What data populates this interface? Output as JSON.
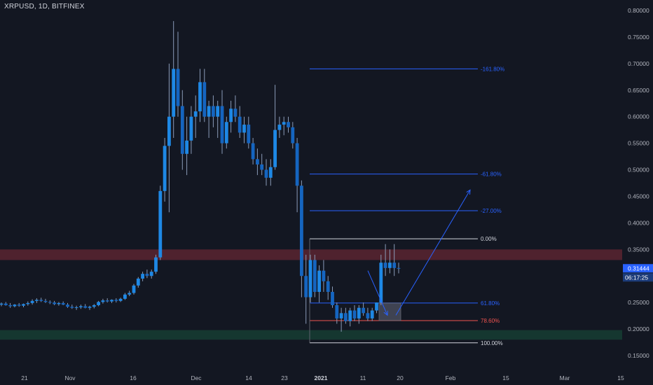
{
  "symbol": {
    "title": "XRPUSD, 1D, BITFINEX"
  },
  "colors": {
    "background": "#131722",
    "candle_up": "#1e88e5",
    "candle_down": "#1565c0",
    "wick": "#8a9bb8",
    "fib_line": "#2962ff",
    "fib_zero": "#d1d4dc",
    "fib_786": "#ef5350",
    "resistance_zone": "#5a2430",
    "support_zone": "#163d33",
    "price_label_bg": "#2962ff",
    "axis_text": "#b2b5be",
    "arrow": "#2962ff"
  },
  "price_axis": {
    "ticks": [
      "0.80000",
      "0.75000",
      "0.70000",
      "0.65000",
      "0.60000",
      "0.55000",
      "0.50000",
      "0.45000",
      "0.40000",
      "0.35000",
      "0.30000",
      "0.25000",
      "0.20000",
      "0.15000"
    ],
    "current_price": "0.31444",
    "countdown": "06:17:25"
  },
  "time_axis": {
    "ticks": [
      "21",
      "Nov",
      "16",
      "Dec",
      "14",
      "23",
      "2021",
      "11",
      "20",
      "Feb",
      "15",
      "Mar",
      "15"
    ]
  },
  "chart_data": {
    "type": "candlestick",
    "title": "XRPUSD, 1D, BITFINEX",
    "ylim": [
      0.13,
      0.82
    ],
    "ohlc": [
      [
        0.246,
        0.25,
        0.243,
        0.248
      ],
      [
        0.248,
        0.251,
        0.244,
        0.245
      ],
      [
        0.245,
        0.249,
        0.24,
        0.243
      ],
      [
        0.243,
        0.247,
        0.241,
        0.246
      ],
      [
        0.246,
        0.249,
        0.242,
        0.244
      ],
      [
        0.244,
        0.248,
        0.241,
        0.247
      ],
      [
        0.247,
        0.252,
        0.244,
        0.249
      ],
      [
        0.249,
        0.256,
        0.246,
        0.253
      ],
      [
        0.253,
        0.258,
        0.249,
        0.255
      ],
      [
        0.255,
        0.259,
        0.251,
        0.253
      ],
      [
        0.253,
        0.257,
        0.249,
        0.251
      ],
      [
        0.251,
        0.254,
        0.247,
        0.25
      ],
      [
        0.25,
        0.253,
        0.245,
        0.247
      ],
      [
        0.247,
        0.251,
        0.244,
        0.249
      ],
      [
        0.249,
        0.252,
        0.245,
        0.246
      ],
      [
        0.246,
        0.249,
        0.24,
        0.242
      ],
      [
        0.242,
        0.246,
        0.238,
        0.24
      ],
      [
        0.24,
        0.244,
        0.236,
        0.241
      ],
      [
        0.241,
        0.246,
        0.238,
        0.243
      ],
      [
        0.243,
        0.247,
        0.239,
        0.24
      ],
      [
        0.24,
        0.244,
        0.236,
        0.242
      ],
      [
        0.242,
        0.247,
        0.239,
        0.245
      ],
      [
        0.245,
        0.253,
        0.243,
        0.251
      ],
      [
        0.251,
        0.257,
        0.248,
        0.254
      ],
      [
        0.254,
        0.258,
        0.25,
        0.252
      ],
      [
        0.252,
        0.256,
        0.249,
        0.255
      ],
      [
        0.255,
        0.258,
        0.25,
        0.253
      ],
      [
        0.253,
        0.259,
        0.251,
        0.257
      ],
      [
        0.257,
        0.268,
        0.255,
        0.265
      ],
      [
        0.265,
        0.272,
        0.262,
        0.268
      ],
      [
        0.268,
        0.285,
        0.265,
        0.282
      ],
      [
        0.282,
        0.298,
        0.278,
        0.295
      ],
      [
        0.295,
        0.308,
        0.29,
        0.304
      ],
      [
        0.304,
        0.312,
        0.296,
        0.3
      ],
      [
        0.3,
        0.312,
        0.295,
        0.308
      ],
      [
        0.308,
        0.34,
        0.304,
        0.335
      ],
      [
        0.335,
        0.47,
        0.33,
        0.46
      ],
      [
        0.46,
        0.56,
        0.44,
        0.545
      ],
      [
        0.545,
        0.7,
        0.42,
        0.6
      ],
      [
        0.6,
        0.78,
        0.56,
        0.69
      ],
      [
        0.69,
        0.76,
        0.6,
        0.62
      ],
      [
        0.62,
        0.65,
        0.5,
        0.53
      ],
      [
        0.53,
        0.6,
        0.49,
        0.555
      ],
      [
        0.555,
        0.62,
        0.53,
        0.6
      ],
      [
        0.6,
        0.64,
        0.56,
        0.61
      ],
      [
        0.61,
        0.69,
        0.59,
        0.665
      ],
      [
        0.665,
        0.69,
        0.59,
        0.6
      ],
      [
        0.6,
        0.63,
        0.56,
        0.62
      ],
      [
        0.62,
        0.64,
        0.58,
        0.6
      ],
      [
        0.6,
        0.63,
        0.56,
        0.62
      ],
      [
        0.62,
        0.65,
        0.53,
        0.55
      ],
      [
        0.55,
        0.6,
        0.54,
        0.59
      ],
      [
        0.59,
        0.63,
        0.57,
        0.615
      ],
      [
        0.615,
        0.64,
        0.59,
        0.6
      ],
      [
        0.6,
        0.62,
        0.56,
        0.57
      ],
      [
        0.57,
        0.6,
        0.55,
        0.585
      ],
      [
        0.585,
        0.6,
        0.54,
        0.55
      ],
      [
        0.55,
        0.56,
        0.51,
        0.52
      ],
      [
        0.52,
        0.54,
        0.49,
        0.51
      ],
      [
        0.51,
        0.53,
        0.49,
        0.5
      ],
      [
        0.5,
        0.52,
        0.47,
        0.485
      ],
      [
        0.485,
        0.52,
        0.47,
        0.505
      ],
      [
        0.505,
        0.66,
        0.5,
        0.575
      ],
      [
        0.575,
        0.6,
        0.56,
        0.585
      ],
      [
        0.585,
        0.6,
        0.565,
        0.59
      ],
      [
        0.59,
        0.6,
        0.57,
        0.58
      ],
      [
        0.58,
        0.59,
        0.54,
        0.55
      ],
      [
        0.55,
        0.56,
        0.42,
        0.47
      ],
      [
        0.47,
        0.48,
        0.26,
        0.3
      ],
      [
        0.3,
        0.34,
        0.21,
        0.26
      ],
      [
        0.26,
        0.34,
        0.25,
        0.33
      ],
      [
        0.33,
        0.34,
        0.26,
        0.27
      ],
      [
        0.27,
        0.32,
        0.25,
        0.31
      ],
      [
        0.31,
        0.33,
        0.27,
        0.29
      ],
      [
        0.29,
        0.3,
        0.255,
        0.27
      ],
      [
        0.27,
        0.28,
        0.24,
        0.245
      ],
      [
        0.245,
        0.25,
        0.21,
        0.22
      ],
      [
        0.22,
        0.24,
        0.195,
        0.23
      ],
      [
        0.23,
        0.24,
        0.21,
        0.215
      ],
      [
        0.215,
        0.24,
        0.205,
        0.235
      ],
      [
        0.235,
        0.245,
        0.215,
        0.22
      ],
      [
        0.22,
        0.245,
        0.21,
        0.24
      ],
      [
        0.24,
        0.25,
        0.225,
        0.23
      ],
      [
        0.23,
        0.24,
        0.215,
        0.22
      ],
      [
        0.22,
        0.24,
        0.215,
        0.235
      ],
      [
        0.235,
        0.25,
        0.23,
        0.25
      ],
      [
        0.25,
        0.34,
        0.245,
        0.325
      ],
      [
        0.325,
        0.36,
        0.3,
        0.315
      ],
      [
        0.315,
        0.35,
        0.305,
        0.325
      ],
      [
        0.325,
        0.36,
        0.3,
        0.315
      ],
      [
        0.315,
        0.325,
        0.305,
        0.314
      ]
    ],
    "fibonacci": [
      {
        "label": "-161.80%",
        "price": 0.69
      },
      {
        "label": "-61.80%",
        "price": 0.492
      },
      {
        "label": "-27.00%",
        "price": 0.423
      },
      {
        "label": "0.00%",
        "price": 0.37
      },
      {
        "label": "61.80%",
        "price": 0.249
      },
      {
        "label": "78.60%",
        "price": 0.216
      },
      {
        "label": "100.00%",
        "price": 0.174
      }
    ],
    "zones": [
      {
        "name": "resistance",
        "from": 0.33,
        "to": 0.35
      },
      {
        "name": "support",
        "from": 0.18,
        "to": 0.198
      }
    ]
  }
}
